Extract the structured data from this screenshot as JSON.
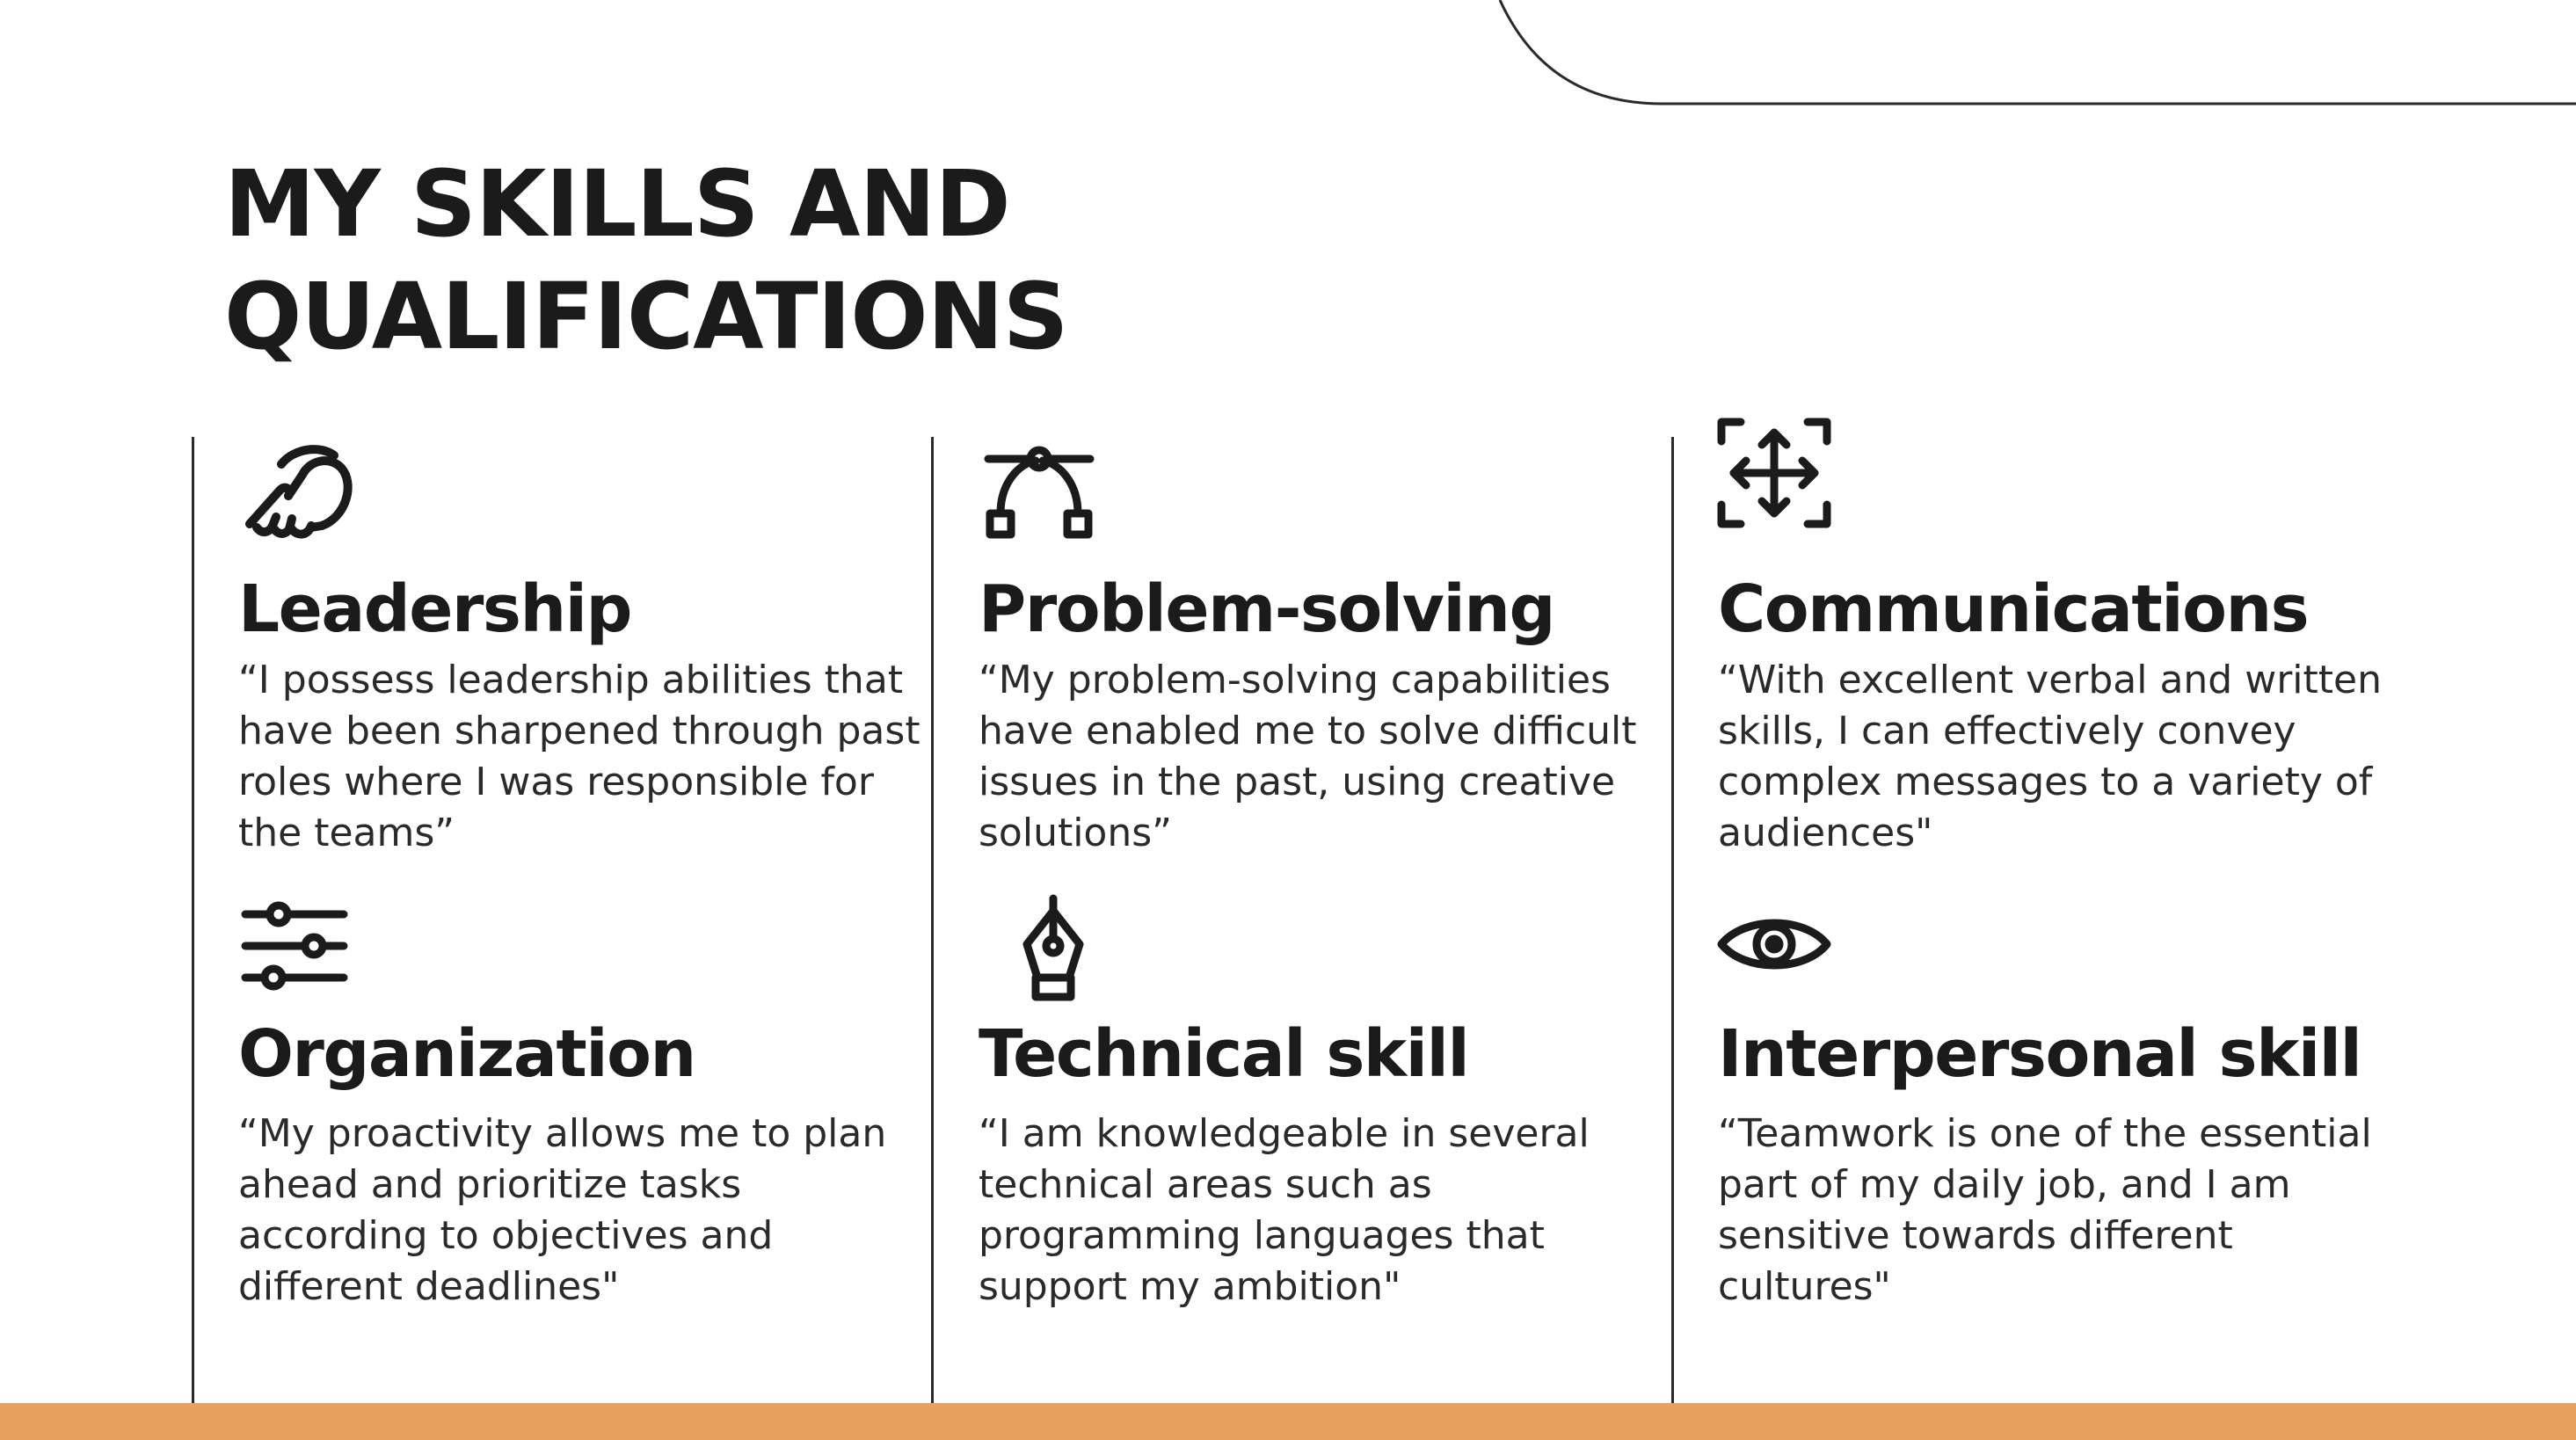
{
  "page": {
    "title": "MY SKILLS AND\nQUALIFICATIONS",
    "accent_color": "#e8a05f",
    "line_color": "#2a2a2a"
  },
  "skills": [
    {
      "title": "Leadership",
      "icon": "pointing-hand-icon",
      "description": "“I possess leadership abilities that have been sharpened through past roles where I was responsible for the teams”"
    },
    {
      "title": "Problem-solving",
      "icon": "bezier-curve-icon",
      "description": "“My problem-solving capabilities have enabled me to solve difficult issues in the past, using creative solutions”"
    },
    {
      "title": "Communications",
      "icon": "move-arrows-icon",
      "description": "“With excellent verbal and written skills, I can effectively convey complex messages to a variety of audiences\""
    },
    {
      "title": "Organization",
      "icon": "sliders-icon",
      "description": "“My proactivity allows me to plan ahead and prioritize tasks according to objectives and different deadlines\""
    },
    {
      "title": "Technical skill",
      "icon": "pen-nib-icon",
      "description": "“I am knowledgeable in several technical areas such as programming languages that support my ambition\""
    },
    {
      "title": "Interpersonal skill",
      "icon": "eye-icon",
      "description": "“Teamwork is one of the essential part of my daily job, and I am sensitive towards different cultures\""
    }
  ]
}
